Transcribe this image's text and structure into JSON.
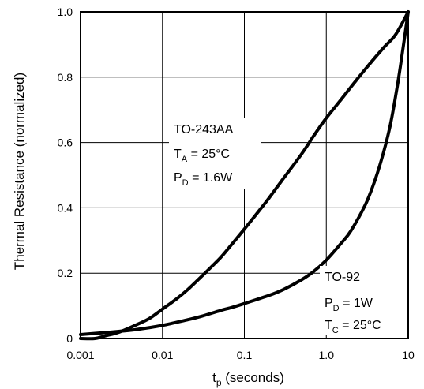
{
  "chart_data": {
    "type": "line",
    "xscale": "log",
    "xlim": [
      0.001,
      10
    ],
    "ylim": [
      0,
      1.0
    ],
    "grid": true,
    "xlabel": {
      "main": "t",
      "sub": "p",
      "rest": " (seconds)"
    },
    "ylabel": "Thermal Resistance (normalized)",
    "xticks": [
      {
        "value": 0.001,
        "label": "0.001"
      },
      {
        "value": 0.01,
        "label": "0.01"
      },
      {
        "value": 0.1,
        "label": "0.1"
      },
      {
        "value": 1,
        "label": "1.0"
      },
      {
        "value": 10,
        "label": "10"
      }
    ],
    "yticks": [
      {
        "value": 0,
        "label": "0"
      },
      {
        "value": 0.2,
        "label": "0.2"
      },
      {
        "value": 0.4,
        "label": "0.4"
      },
      {
        "value": 0.6,
        "label": "0.6"
      },
      {
        "value": 0.8,
        "label": "0.8"
      },
      {
        "value": 1.0,
        "label": "1.0"
      }
    ],
    "series": [
      {
        "name": "TO-243AA",
        "x": [
          0.001,
          0.0015,
          0.002,
          0.003,
          0.005,
          0.007,
          0.01,
          0.015,
          0.02,
          0.03,
          0.05,
          0.07,
          0.1,
          0.15,
          0.2,
          0.3,
          0.5,
          0.7,
          1.0,
          1.5,
          2,
          3,
          5,
          7,
          10
        ],
        "y": [
          0.0,
          0.0,
          0.008,
          0.02,
          0.044,
          0.062,
          0.09,
          0.122,
          0.148,
          0.19,
          0.245,
          0.288,
          0.335,
          0.39,
          0.43,
          0.49,
          0.565,
          0.62,
          0.675,
          0.73,
          0.77,
          0.825,
          0.89,
          0.93,
          1.0
        ]
      },
      {
        "name": "TO-92",
        "x": [
          0.001,
          0.002,
          0.003,
          0.005,
          0.01,
          0.02,
          0.03,
          0.05,
          0.07,
          0.1,
          0.2,
          0.3,
          0.5,
          0.7,
          1.0,
          1.5,
          2,
          3,
          4,
          5,
          6,
          7,
          8,
          10
        ],
        "y": [
          0.012,
          0.018,
          0.022,
          0.028,
          0.04,
          0.057,
          0.068,
          0.085,
          0.095,
          0.107,
          0.132,
          0.15,
          0.18,
          0.205,
          0.24,
          0.29,
          0.33,
          0.41,
          0.49,
          0.57,
          0.65,
          0.74,
          0.83,
          1.0
        ]
      }
    ],
    "annotations": [
      {
        "id": "to243",
        "lines": [
          {
            "main": "TO-243AA",
            "sub": "",
            "rest": ""
          },
          {
            "main": "T",
            "sub": "A",
            "rest": " = 25°C"
          },
          {
            "main": "P",
            "sub": "D",
            "rest": " = 1.6W"
          }
        ]
      },
      {
        "id": "to92",
        "lines": [
          {
            "main": "TO-92",
            "sub": "",
            "rest": ""
          },
          {
            "main": "P",
            "sub": "D",
            "rest": " = 1W"
          },
          {
            "main": "T",
            "sub": "C",
            "rest": " = 25°C"
          }
        ]
      }
    ]
  }
}
